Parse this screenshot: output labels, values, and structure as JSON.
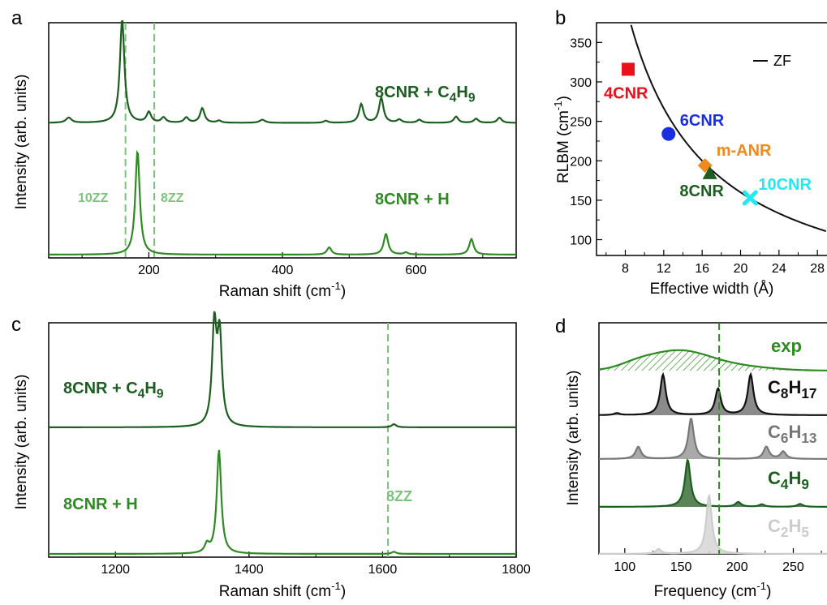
{
  "colors": {
    "dark_green": "#1b5e20",
    "green": "#2e8b22",
    "light_green": "#7cc47c",
    "red": "#e8101a",
    "blue": "#1a2ee0",
    "orange": "#f08a1c",
    "cyan": "#22e8f0",
    "black": "#111111",
    "gray": "#777777",
    "light_gray": "#cccccc"
  },
  "chart_data": [
    {
      "id": "a",
      "panel_label": "a",
      "type": "line",
      "xlabel_main": "Raman shift (cm",
      "xlabel_sup": "-1",
      "xlabel_end": ")",
      "ylabel": "Intensity (arb. units)",
      "xlim": [
        50,
        750
      ],
      "xticks": [
        200,
        400,
        600
      ],
      "tick_labels": [
        "200",
        "400",
        "600"
      ],
      "vlines": [
        165,
        208
      ],
      "vline_labels": [
        "10ZZ",
        "8ZZ"
      ],
      "series": [
        {
          "color_key": "dark_green",
          "label_main": "8CNR + C",
          "label_sub1": "4",
          "label_mid": "H",
          "label_sub2": "9",
          "baseline": 0.56,
          "peaks": [
            [
              160,
              1.0,
              4
            ],
            [
              80,
              0.05,
              5
            ],
            [
              200,
              0.1,
              4
            ],
            [
              222,
              0.05,
              4
            ],
            [
              256,
              0.05,
              4
            ],
            [
              280,
              0.14,
              4
            ],
            [
              305,
              0.02,
              4
            ],
            [
              370,
              0.03,
              5
            ],
            [
              465,
              0.02,
              4
            ],
            [
              518,
              0.18,
              4
            ],
            [
              548,
              0.24,
              4
            ],
            [
              575,
              0.03,
              4
            ],
            [
              605,
              0.03,
              4
            ],
            [
              660,
              0.06,
              4
            ],
            [
              690,
              0.04,
              4
            ],
            [
              725,
              0.05,
              4
            ]
          ]
        },
        {
          "color_key": "green",
          "label_main": "8CNR + H",
          "baseline": 0.0,
          "peaks": [
            [
              183,
              1.0,
              4
            ],
            [
              470,
              0.07,
              4
            ],
            [
              555,
              0.2,
              4
            ],
            [
              585,
              0.02,
              4
            ],
            [
              683,
              0.15,
              4
            ]
          ]
        }
      ]
    },
    {
      "id": "b",
      "panel_label": "b",
      "type": "scatter",
      "xlabel": "Effective width (Å)",
      "ylabel_main": "RLBM (cm",
      "ylabel_sup": "-1",
      "ylabel_end": ")",
      "xlim": [
        5,
        29
      ],
      "ylim": [
        80,
        375
      ],
      "xticks": [
        8,
        12,
        16,
        20,
        24,
        28
      ],
      "xtick_labels": [
        "8",
        "12",
        "16",
        "20",
        "24",
        "28"
      ],
      "yticks": [
        100,
        150,
        200,
        250,
        300,
        350
      ],
      "ytick_labels": [
        "100",
        "150",
        "200",
        "250",
        "300",
        "350"
      ],
      "legend_text": "ZF",
      "legend_position": "top-right",
      "curve": {
        "A": 3200,
        "x_start": 8.6,
        "x_end": 29
      },
      "points": [
        {
          "label": "4CNR",
          "x": 8.3,
          "y": 316,
          "marker": "square",
          "color_key": "red"
        },
        {
          "label": "6CNR",
          "x": 12.5,
          "y": 234,
          "marker": "circle",
          "color_key": "blue"
        },
        {
          "label": "m-ANR",
          "x": 16.3,
          "y": 194,
          "marker": "diamond",
          "color_key": "orange"
        },
        {
          "label": "8CNR",
          "x": 16.8,
          "y": 184,
          "marker": "triangle",
          "color_key": "dark_green"
        },
        {
          "label": "10CNR",
          "x": 21.0,
          "y": 153,
          "marker": "x",
          "color_key": "cyan"
        }
      ]
    },
    {
      "id": "c",
      "panel_label": "c",
      "type": "line",
      "xlabel_main": "Raman shift (cm",
      "xlabel_sup": "-1",
      "xlabel_end": ")",
      "ylabel": "Intensity (arb. units)",
      "xlim": [
        1100,
        1800
      ],
      "xticks": [
        1200,
        1400,
        1600,
        1800
      ],
      "tick_labels": [
        "1200",
        "1400",
        "1600",
        "1800"
      ],
      "vlines": [
        1608
      ],
      "vline_labels": [
        "8ZZ"
      ],
      "series": [
        {
          "color_key": "dark_green",
          "label_main": "8CNR + C",
          "label_sub1": "4",
          "label_mid": "H",
          "label_sub2": "9",
          "baseline": 0.54,
          "peaks": [
            [
              1348,
              0.95,
              4
            ],
            [
              1356,
              0.85,
              4
            ],
            [
              1617,
              0.03,
              4
            ]
          ]
        },
        {
          "color_key": "green",
          "label_main": "8CNR + H",
          "baseline": 0.0,
          "peaks": [
            [
              1355,
              1.0,
              4
            ],
            [
              1337,
              0.08,
              4
            ],
            [
              1617,
              0.02,
              4
            ]
          ]
        }
      ]
    },
    {
      "id": "d",
      "panel_label": "d",
      "type": "area",
      "xlabel_main": "Frequency (cm",
      "xlabel_sup": "-1",
      "xlabel_end": ")",
      "ylabel": "Intensity (arb. units)",
      "xlim": [
        77,
        280
      ],
      "xticks": [
        100,
        150,
        200,
        250
      ],
      "tick_labels": [
        "100",
        "150",
        "200",
        "250"
      ],
      "vlines": [
        184
      ],
      "series": [
        {
          "color_key": "green",
          "hatched": true,
          "label_main": "exp",
          "peaks_gauss": [
            [
              147,
              0.6,
              28
            ],
            [
              110,
              0.12,
              15
            ],
            [
              200,
              0.12,
              30
            ]
          ]
        },
        {
          "color_key": "black",
          "label_main": "C",
          "label_sub1": "8",
          "label_mid": "H",
          "label_sub2": "17",
          "peaks": [
            [
              134,
              1.0,
              3
            ],
            [
              183,
              0.65,
              3
            ],
            [
              212,
              1.0,
              3
            ],
            [
              93,
              0.05,
              3
            ]
          ]
        },
        {
          "color_key": "gray",
          "label_main": "C",
          "label_sub1": "6",
          "label_mid": "H",
          "label_sub2": "13",
          "peaks": [
            [
              159,
              1.0,
              3
            ],
            [
              112,
              0.3,
              3
            ],
            [
              226,
              0.3,
              3
            ],
            [
              241,
              0.18,
              3
            ]
          ]
        },
        {
          "color_key": "dark_green",
          "label_main": "C",
          "label_sub1": "4",
          "label_mid": "H",
          "label_sub2": "9",
          "peaks": [
            [
              156,
              1.0,
              3
            ],
            [
              201,
              0.1,
              3
            ],
            [
              222,
              0.05,
              3
            ],
            [
              256,
              0.06,
              3
            ]
          ]
        },
        {
          "color_key": "light_gray",
          "label_main": "C",
          "label_sub1": "2",
          "label_mid": "H",
          "label_sub2": "5",
          "peaks": [
            [
              175,
              1.0,
              3
            ],
            [
              130,
              0.08,
              3
            ]
          ]
        }
      ]
    }
  ]
}
